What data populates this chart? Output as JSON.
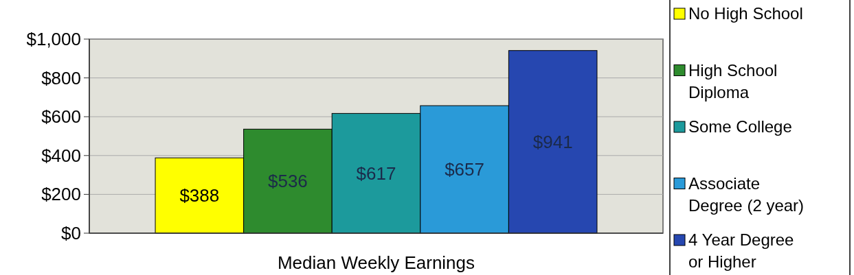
{
  "chart_data": {
    "type": "bar",
    "xlabel": "Median Weekly Earnings",
    "categories": [
      null
    ],
    "series": [
      {
        "name": "No High School",
        "color": "#ffff00",
        "values": [
          388
        ],
        "value_labels": [
          "$388"
        ]
      },
      {
        "name": "High School Diploma",
        "color": "#2e8b2e",
        "values": [
          536
        ],
        "value_labels": [
          "$536"
        ]
      },
      {
        "name": "Some College",
        "color": "#1c9a9c",
        "values": [
          617
        ],
        "value_labels": [
          "$617"
        ]
      },
      {
        "name": "Associate Degree (2 year)",
        "color": "#2a9ad8",
        "values": [
          657
        ],
        "value_labels": [
          "$657"
        ]
      },
      {
        "name": "4 Year Degree or Higher",
        "color": "#2647b0",
        "values": [
          941
        ],
        "value_labels": [
          "$941"
        ]
      }
    ],
    "ylim": [
      0,
      1000
    ],
    "yticks": [
      {
        "value": 0,
        "label": "$0"
      },
      {
        "value": 200,
        "label": "$200"
      },
      {
        "value": 400,
        "label": "$400"
      },
      {
        "value": 600,
        "label": "$600"
      },
      {
        "value": 800,
        "label": "$800"
      },
      {
        "value": 1000,
        "label": "$1,000"
      }
    ],
    "grid": "y",
    "legend": "right"
  }
}
